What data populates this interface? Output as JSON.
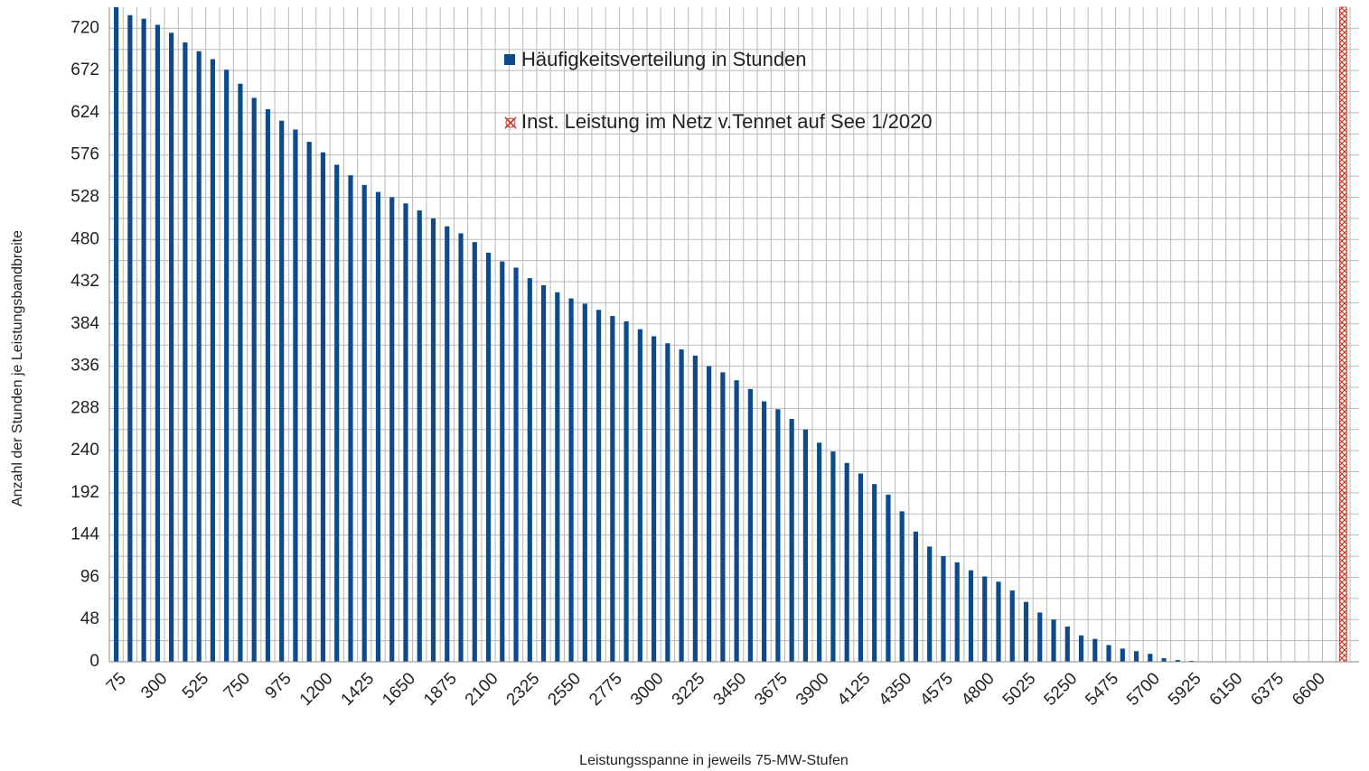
{
  "chart_data": {
    "type": "bar",
    "x_label": "Leistungsspanne in jeweils 75-MW-Stufen",
    "y_label": "Anzahl der Stunden je Leistungsbandbreite",
    "categories": [
      "75",
      null,
      null,
      "300",
      null,
      null,
      "525",
      null,
      null,
      "750",
      null,
      null,
      "975",
      null,
      null,
      "1200",
      null,
      null,
      "1425",
      null,
      null,
      "1650",
      null,
      null,
      "1875",
      null,
      null,
      "2100",
      null,
      null,
      "2325",
      null,
      null,
      "2550",
      null,
      null,
      "2775",
      null,
      null,
      "3000",
      null,
      null,
      "3225",
      null,
      null,
      "3450",
      null,
      null,
      "3675",
      null,
      null,
      "3900",
      null,
      null,
      "4125",
      null,
      null,
      "4350",
      null,
      null,
      "4575",
      null,
      null,
      "4800",
      null,
      null,
      "5025",
      null,
      null,
      "5250",
      null,
      null,
      "5475",
      null,
      null,
      "5700",
      null,
      null,
      "5925",
      null,
      null,
      "6150",
      null,
      null,
      "6375",
      null,
      null,
      "6600",
      null,
      null
    ],
    "series": [
      {
        "name": "Häufigkeitsverteilung in Stunden",
        "color": "#0d4a8c",
        "values": [
          744,
          735,
          731,
          724,
          715,
          704,
          694,
          685,
          673,
          657,
          641,
          628,
          615,
          605,
          591,
          579,
          565,
          553,
          542,
          534,
          528,
          521,
          513,
          504,
          495,
          487,
          477,
          465,
          455,
          448,
          436,
          428,
          420,
          413,
          407,
          400,
          393,
          387,
          378,
          370,
          362,
          355,
          348,
          336,
          329,
          320,
          310,
          296,
          287,
          276,
          264,
          249,
          239,
          226,
          214,
          202,
          190,
          171,
          148,
          131,
          120,
          113,
          104,
          97,
          91,
          81,
          68,
          56,
          48,
          40,
          30,
          26,
          19,
          15,
          12,
          9,
          4,
          2,
          1,
          0,
          0,
          0,
          0,
          0,
          0,
          0,
          0,
          0,
          0,
          0
        ]
      },
      {
        "name": "Inst. Leistung im Netz v.Tennet auf See 1/2020",
        "color": "#c0392b",
        "values": [
          null,
          null,
          null,
          null,
          null,
          null,
          null,
          null,
          null,
          null,
          null,
          null,
          null,
          null,
          null,
          null,
          null,
          null,
          null,
          null,
          null,
          null,
          null,
          null,
          null,
          null,
          null,
          null,
          null,
          null,
          null,
          null,
          null,
          null,
          null,
          null,
          null,
          null,
          null,
          null,
          null,
          null,
          null,
          null,
          null,
          null,
          null,
          null,
          null,
          null,
          null,
          null,
          null,
          null,
          null,
          null,
          null,
          null,
          null,
          null,
          null,
          null,
          null,
          null,
          null,
          null,
          null,
          null,
          null,
          null,
          null,
          null,
          null,
          null,
          null,
          null,
          null,
          null,
          null,
          null,
          null,
          null,
          null,
          null,
          null,
          null,
          null,
          null,
          null,
          744
        ]
      }
    ],
    "ylim": [
      0,
      744
    ],
    "yticks": [
      0,
      48,
      96,
      144,
      192,
      240,
      288,
      336,
      384,
      432,
      480,
      528,
      576,
      624,
      672,
      720
    ],
    "grid": true
  }
}
